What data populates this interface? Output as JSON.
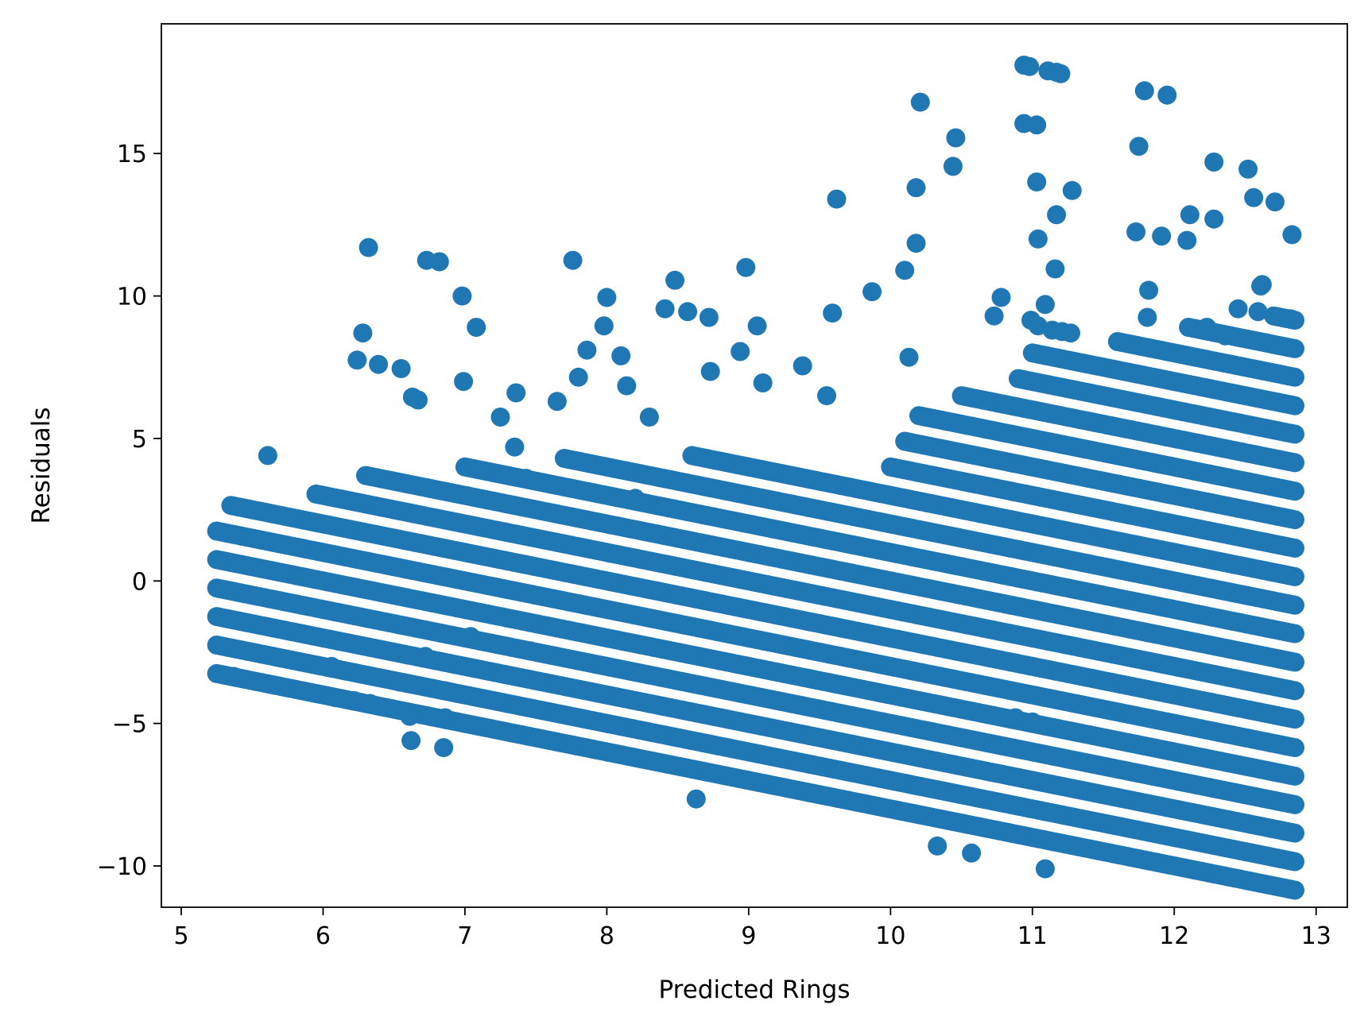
{
  "chart_data": {
    "type": "scatter",
    "title": "",
    "xlabel": "Predicted Rings",
    "ylabel": "Residuals",
    "xlim": [
      4.86,
      13.22
    ],
    "ylim": [
      -11.45,
      19.55
    ],
    "xticks": [
      5,
      6,
      7,
      8,
      9,
      10,
      11,
      12,
      13
    ],
    "xtick_labels": [
      "5",
      "6",
      "7",
      "8",
      "9",
      "10",
      "11",
      "12",
      "13"
    ],
    "yticks": [
      -10,
      -5,
      0,
      5,
      10,
      15
    ],
    "ytick_labels": [
      "−10",
      "−5",
      "0",
      "5",
      "10",
      "15"
    ],
    "grid": false,
    "legend": "none",
    "point_color": "#1f77b4",
    "series": [
      {
        "band_rings": [
          3,
          4,
          5,
          6,
          7,
          8,
          9,
          10,
          11,
          12,
          13,
          14,
          15,
          16,
          17,
          18,
          19,
          20,
          21,
          22,
          23
        ],
        "bands": [
          {
            "rings": 3,
            "x_range": [
              5.25,
              12.85
            ],
            "note": "dense band of points at residual = rings - predicted"
          }
        ],
        "x": [
          5.37,
          5.65,
          6.09,
          6.22,
          6.33,
          6.15,
          6.06,
          5.61,
          6.32,
          6.24,
          6.28,
          6.39,
          6.55,
          6.63,
          6.67,
          6.73,
          6.82,
          6.85,
          6.86,
          6.98,
          6.99,
          7.08,
          7.36,
          7.46,
          7.25,
          7.35,
          7.43,
          7.76,
          7.86,
          7.98,
          8.0,
          8.1,
          8.14,
          8.48,
          8.72,
          8.98,
          9.06,
          9.62,
          10.21,
          10.33,
          10.57,
          11.09,
          11.0,
          10.88,
          10.94,
          10.98,
          11.03,
          11.11,
          11.17,
          11.2,
          10.94,
          11.03,
          11.04,
          10.46,
          10.44,
          10.18,
          10.18,
          11.17,
          11.28,
          11.79,
          11.75,
          11.95,
          12.28,
          12.52,
          12.71,
          12.83,
          12.56,
          12.28,
          12.11,
          12.09,
          11.91,
          11.73,
          11.16,
          11.09,
          8.63,
          8.41,
          8.57,
          8.73,
          8.94,
          9.1,
          9.59,
          9.87,
          10.1,
          6.62,
          6.6,
          6.86,
          6.54,
          6.61,
          6.72,
          7.04,
          7.65,
          7.8,
          8.3,
          8.2,
          9.38,
          9.55,
          10.13,
          10.78,
          11.14,
          11.21,
          11.27,
          11.04,
          10.73,
          11.81,
          12.36,
          12.23,
          12.45,
          12.59,
          12.61,
          12.82,
          12.62,
          11.82,
          10.99
        ],
        "y": [
          -3.35,
          -3.65,
          -4.1,
          -4.2,
          -4.3,
          -3.15,
          -3.0,
          4.4,
          11.7,
          7.75,
          8.7,
          7.6,
          7.45,
          6.45,
          6.35,
          11.25,
          11.2,
          -5.85,
          -3.85,
          10.0,
          7.0,
          8.9,
          6.6,
          -2.45,
          5.75,
          4.7,
          3.6,
          11.25,
          8.1,
          8.95,
          9.95,
          7.9,
          6.85,
          10.55,
          9.25,
          11.0,
          8.95,
          13.4,
          16.8,
          -9.3,
          -9.55,
          -10.1,
          -4.95,
          -4.8,
          18.1,
          18.05,
          16.0,
          17.9,
          17.85,
          17.8,
          16.05,
          14.0,
          12.0,
          15.55,
          14.55,
          13.8,
          11.85,
          12.85,
          13.7,
          17.2,
          15.25,
          17.05,
          14.7,
          14.45,
          13.3,
          12.15,
          13.45,
          12.7,
          12.85,
          11.95,
          12.1,
          12.25,
          10.95,
          9.7,
          -7.65,
          9.55,
          9.45,
          7.35,
          8.05,
          6.95,
          9.4,
          10.15,
          10.9,
          -5.6,
          -3.6,
          -4.8,
          -3.55,
          -4.75,
          -2.65,
          -1.95,
          6.3,
          7.15,
          5.75,
          2.9,
          7.55,
          6.5,
          7.85,
          9.95,
          8.8,
          8.75,
          8.7,
          8.95,
          9.3,
          9.25,
          8.6,
          8.9,
          9.55,
          9.45,
          10.35,
          9.2,
          10.4,
          10.2,
          9.15
        ]
      }
    ]
  }
}
